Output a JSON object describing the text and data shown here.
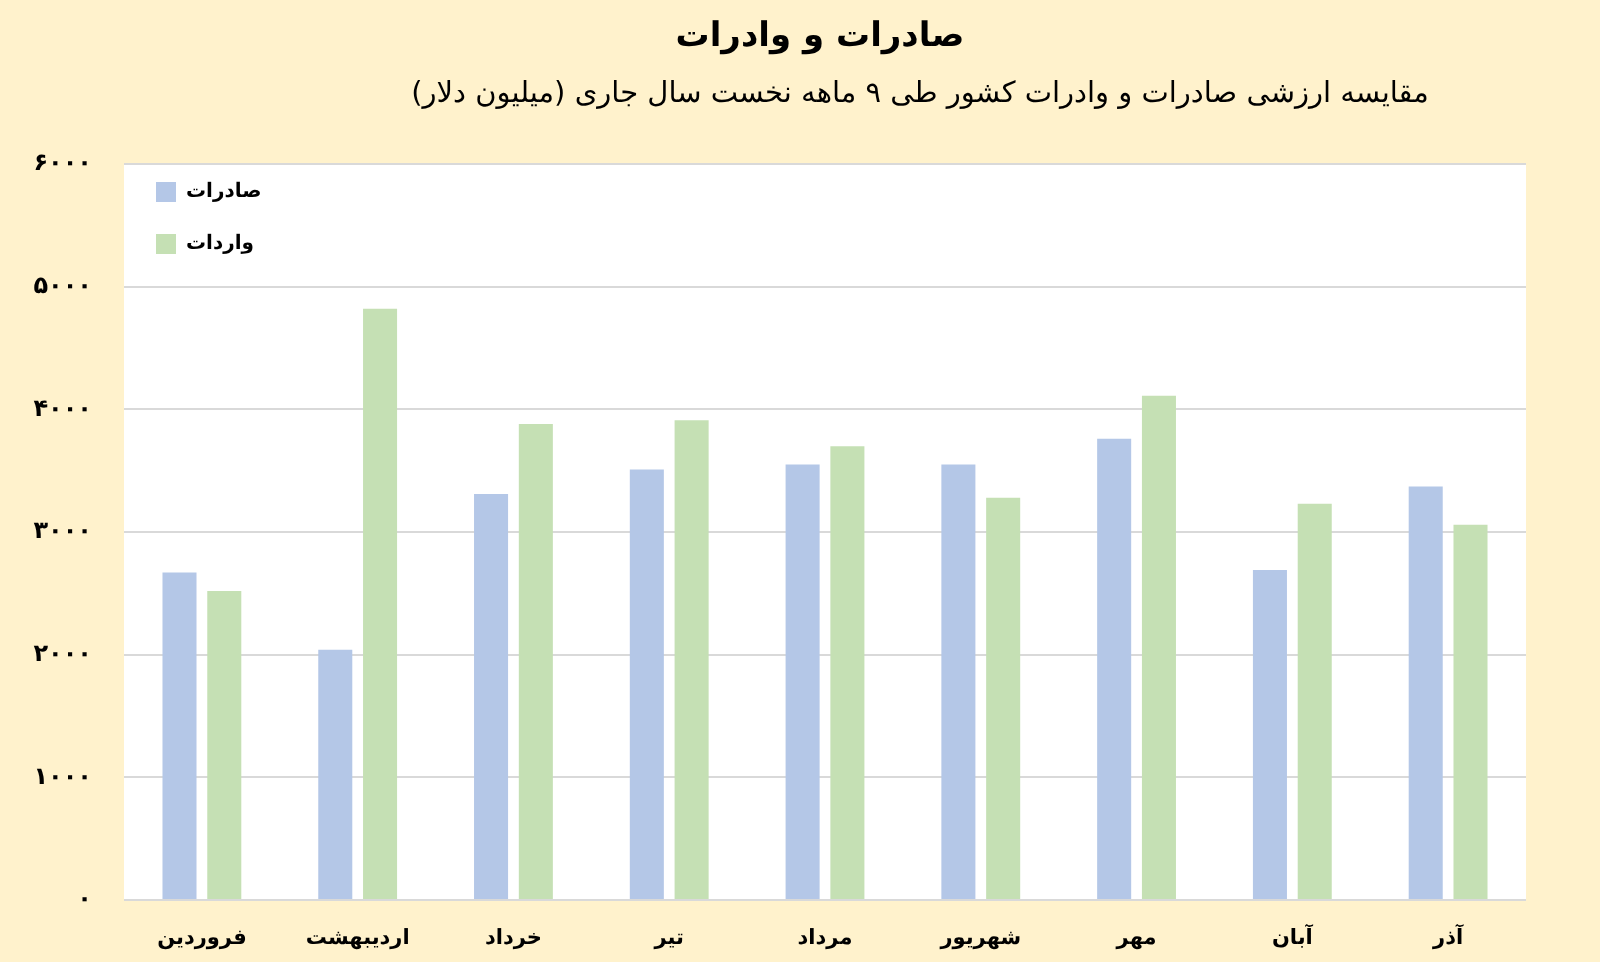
{
  "chart_data": {
    "type": "bar",
    "title": "صادرات و وادرات",
    "subtitle": "مقایسه ارزشی صادرات و وادرات کشور طی ۹ ماهه نخست سال جاری (میلیون دلار)",
    "categories": [
      "فروردین",
      "اردیبهشت",
      "خرداد",
      "تیر",
      "مرداد",
      "شهریور",
      "مهر",
      "آبان",
      "آذر"
    ],
    "series": [
      {
        "name": "صادرات",
        "color": "#b4c7e7",
        "values": [
          2670,
          2040,
          3310,
          3510,
          3550,
          3550,
          3760,
          2690,
          3370
        ]
      },
      {
        "name": "واردات",
        "color": "#c5e0b4",
        "values": [
          2520,
          4820,
          3880,
          3910,
          3700,
          3280,
          4110,
          3230,
          3060
        ]
      }
    ],
    "ylim": [
      0,
      6000
    ],
    "yticks": [
      {
        "value": 0,
        "label": "۰"
      },
      {
        "value": 1000,
        "label": "۱۰۰۰"
      },
      {
        "value": 2000,
        "label": "۲۰۰۰"
      },
      {
        "value": 3000,
        "label": "۳۰۰۰"
      },
      {
        "value": 4000,
        "label": "۴۰۰۰"
      },
      {
        "value": 5000,
        "label": "۵۰۰۰"
      },
      {
        "value": 6000,
        "label": "۶۰۰۰"
      }
    ],
    "grid": "y",
    "legend": "top left"
  }
}
